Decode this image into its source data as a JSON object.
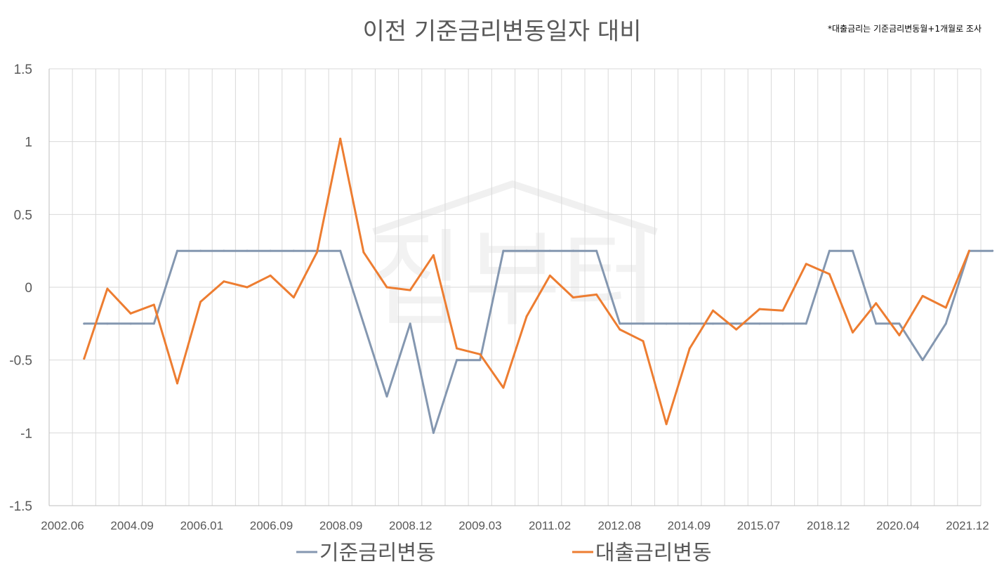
{
  "chart_data": {
    "type": "line",
    "title": "이전 기준금리변동일자 대비",
    "note": "*대출금리는 기준금리변동월+1개월로 조사",
    "watermark": "집부터",
    "ylim": [
      -1.5,
      1.5
    ],
    "yticks": [
      1.5,
      1,
      0.5,
      0,
      -0.5,
      -1,
      -1.5
    ],
    "yticks_labels": [
      "1.5",
      "1",
      "0.5",
      "0",
      "-0.5",
      "-1",
      "-1.5"
    ],
    "grid": true,
    "legend_position": "bottom",
    "x_labels": [
      "2002.06",
      "2004.09",
      "2006.01",
      "2006.09",
      "2008.09",
      "2008.12",
      "2009.03",
      "2011.02",
      "2012.08",
      "2014.09",
      "2015.07",
      "2018.12",
      "2020.04",
      "2021.12"
    ],
    "series": [
      {
        "name": "기준금리변동",
        "color": "#8497B0",
        "values": [
          -0.25,
          -0.25,
          -0.25,
          -0.25,
          0.25,
          0.25,
          0.25,
          0.25,
          0.25,
          0.25,
          0.25,
          0.25,
          -0.25,
          -0.75,
          -0.25,
          -1.0,
          -0.5,
          -0.5,
          0.25,
          0.25,
          0.25,
          0.25,
          0.25,
          -0.25,
          -0.25,
          -0.25,
          -0.25,
          -0.25,
          -0.25,
          -0.25,
          -0.25,
          -0.25,
          0.25,
          0.25,
          -0.25,
          -0.25,
          -0.5,
          -0.25,
          0.25,
          0.25
        ]
      },
      {
        "name": "대출금리변동",
        "color": "#ED7D31",
        "values": [
          -0.49,
          -0.01,
          -0.18,
          -0.12,
          -0.66,
          -0.1,
          0.04,
          0.0,
          0.08,
          -0.07,
          0.24,
          1.02,
          0.24,
          0.0,
          -0.02,
          0.22,
          -0.42,
          -0.46,
          -0.69,
          -0.2,
          0.08,
          -0.07,
          -0.05,
          -0.29,
          -0.37,
          -0.94,
          -0.42,
          -0.16,
          -0.29,
          -0.15,
          -0.16,
          0.16,
          0.09,
          -0.31,
          -0.11,
          -0.33,
          -0.06,
          -0.14,
          0.25
        ]
      }
    ]
  }
}
